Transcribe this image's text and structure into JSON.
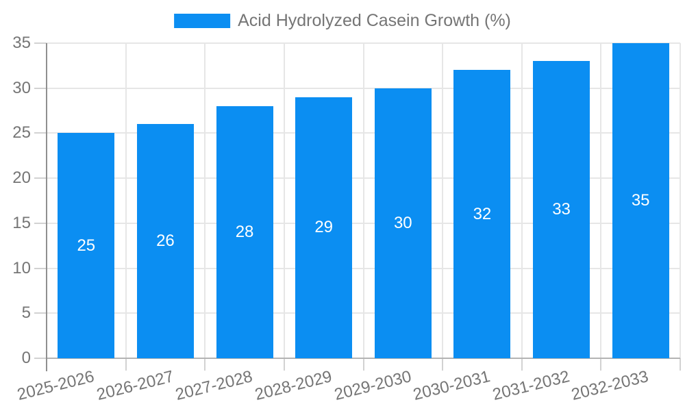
{
  "page": {
    "background": "#ffffff"
  },
  "legend": {
    "items": [
      {
        "label": "Acid Hydrolyzed Casein Growth (%)",
        "color": "#0b8ef2"
      }
    ]
  },
  "colors": {
    "bar": "#0b8ef2",
    "grid": "#e6e6e6",
    "y_axis_line": "#8f8f8f",
    "x_baseline": "#b3b3b3",
    "tick": "#d2d2d2",
    "axis_text": "#757575",
    "value_label_text": "#ffffff",
    "background": "#ffffff"
  },
  "chart_data": {
    "type": "bar",
    "title": "",
    "categories": [
      "2025-2026",
      "2026-2027",
      "2027-2028",
      "2028-2029",
      "2029-2030",
      "2030-2031",
      "2031-2032",
      "2032-2033"
    ],
    "series": [
      {
        "name": "Acid Hydrolyzed Casein Growth (%)",
        "color": "#0b8ef2",
        "values": [
          25,
          26,
          28,
          29,
          30,
          32,
          33,
          35
        ]
      }
    ],
    "ylim": [
      0,
      35
    ],
    "yticks": [
      0,
      5,
      10,
      15,
      20,
      25,
      30,
      35
    ],
    "grid": true,
    "legend_position": "top-center",
    "value_labels": "inside-middle",
    "x_tick_rotation_deg": -14,
    "xlabel": "",
    "ylabel": ""
  }
}
